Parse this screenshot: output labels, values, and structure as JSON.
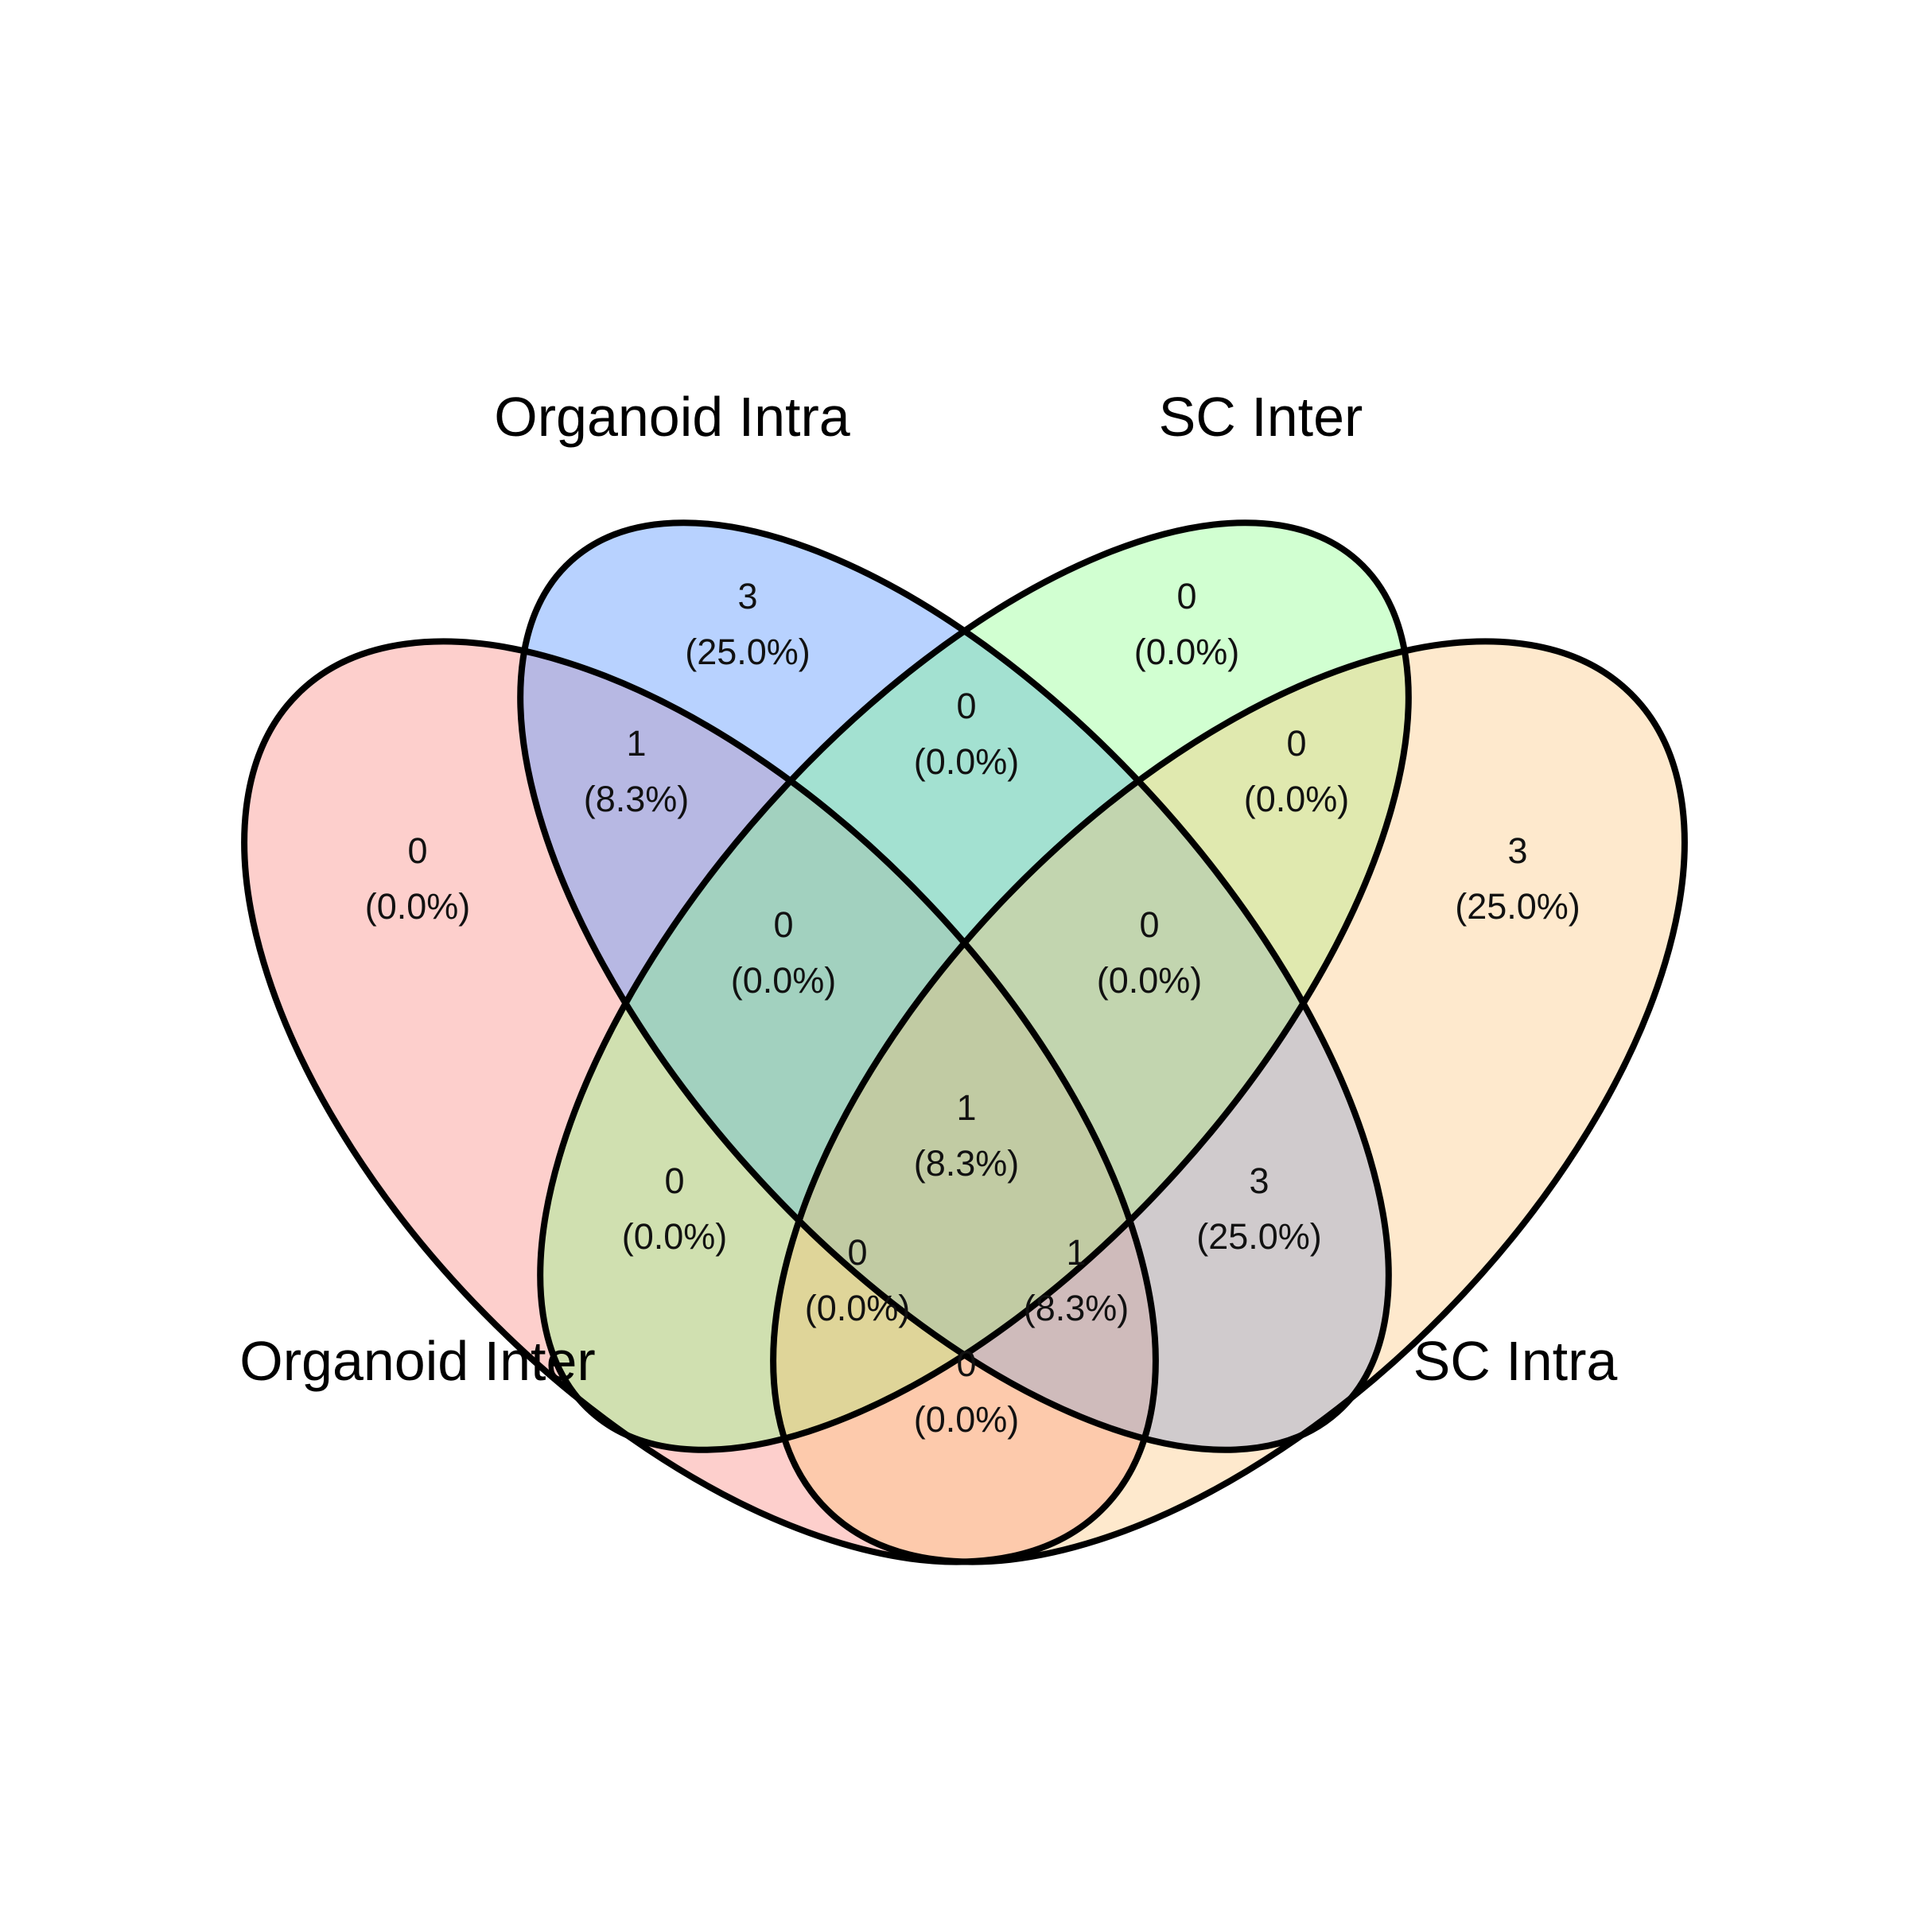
{
  "sets": [
    {
      "id": "A",
      "name": "Organoid Inter",
      "color": "#F8766D"
    },
    {
      "id": "B",
      "name": "Organoid Intra",
      "color": "#619CFF"
    },
    {
      "id": "C",
      "name": "SC Inter",
      "color": "#7CFF7C"
    },
    {
      "id": "D",
      "name": "SC Intra",
      "color": "#FDBF6F"
    }
  ],
  "regions": [
    {
      "sets": "A",
      "count": "0",
      "percent": "(0.0%)"
    },
    {
      "sets": "B",
      "count": "3",
      "percent": "(25.0%)"
    },
    {
      "sets": "C",
      "count": "0",
      "percent": "(0.0%)"
    },
    {
      "sets": "D",
      "count": "3",
      "percent": "(25.0%)"
    },
    {
      "sets": "AB",
      "count": "1",
      "percent": "(8.3%)"
    },
    {
      "sets": "BC",
      "count": "0",
      "percent": "(0.0%)"
    },
    {
      "sets": "CD",
      "count": "0",
      "percent": "(0.0%)"
    },
    {
      "sets": "ABC",
      "count": "0",
      "percent": "(0.0%)"
    },
    {
      "sets": "BCD",
      "count": "0",
      "percent": "(0.0%)"
    },
    {
      "sets": "ABCD",
      "count": "1",
      "percent": "(8.3%)"
    },
    {
      "sets": "AC",
      "count": "0",
      "percent": "(0.0%)"
    },
    {
      "sets": "BD",
      "count": "3",
      "percent": "(25.0%)"
    },
    {
      "sets": "ACD",
      "count": "0",
      "percent": "(0.0%)"
    },
    {
      "sets": "ABD",
      "count": "1",
      "percent": "(8.3%)"
    },
    {
      "sets": "AD",
      "count": "0",
      "percent": "(0.0%)"
    }
  ]
}
